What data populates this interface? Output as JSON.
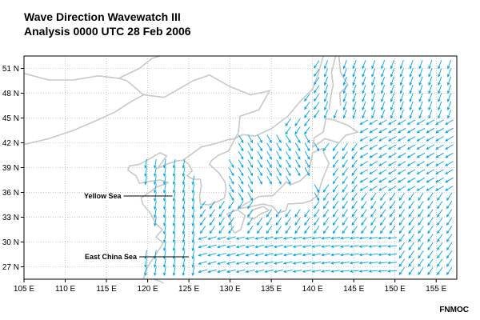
{
  "title": {
    "line1": "Wave Direction Wavewatch III",
    "line2": "Analysis 0000 UTC 28 Feb 2006"
  },
  "credit": "FNMOC",
  "map": {
    "lat_labels": [
      "51 N",
      "48 N",
      "45 N",
      "42 N",
      "39 N",
      "36 N",
      "33 N",
      "30 N",
      "27 N"
    ],
    "lon_labels": [
      "105 E",
      "110 E",
      "115 E",
      "120 E",
      "125 E",
      "130 E",
      "135 E",
      "140 E",
      "145 E",
      "150 E",
      "155 E"
    ],
    "region_labels": [
      {
        "name": "Yellow Sea",
        "lon": 123.0,
        "lat": 35.0
      },
      {
        "name": "East China Sea",
        "lon": 125.0,
        "lat": 28.7
      }
    ],
    "colors": {
      "land": "#ffffff",
      "coastline": "#c8c8c8",
      "grid": "#999999",
      "arrows": "#00a5e6",
      "frame": "#000000"
    }
  }
}
